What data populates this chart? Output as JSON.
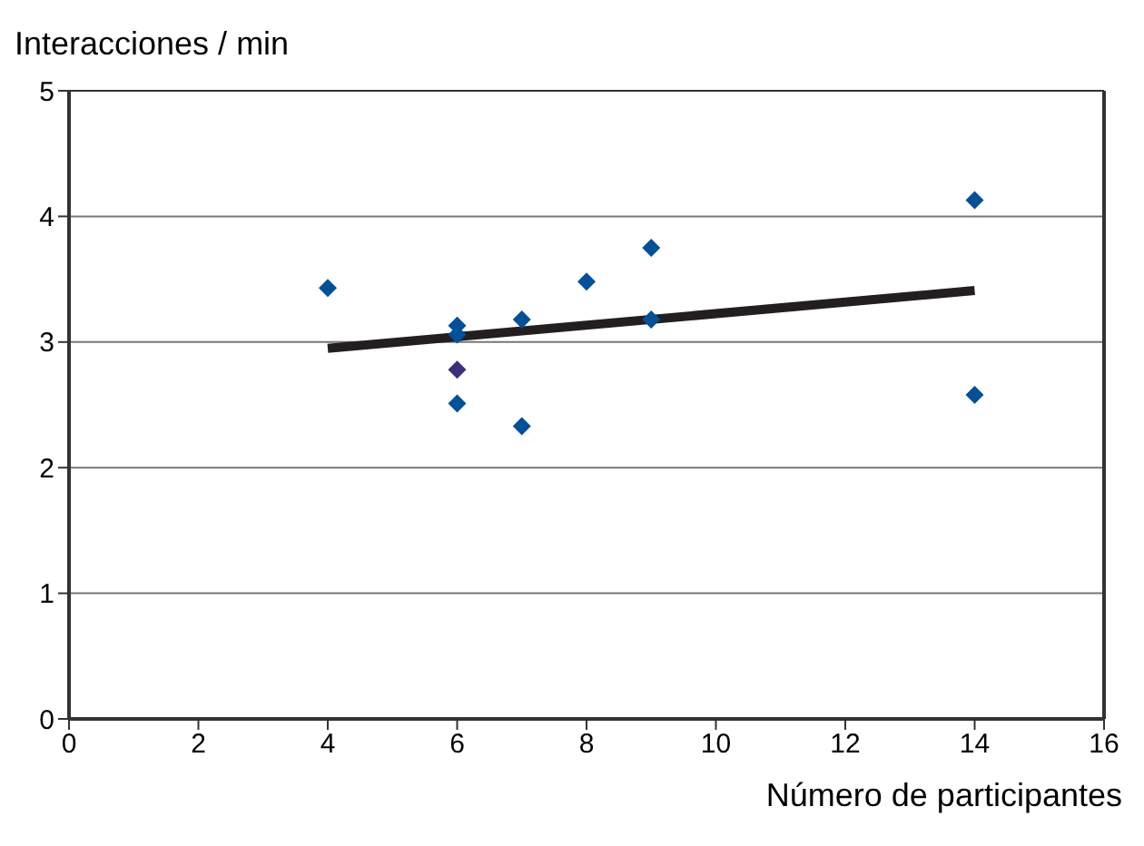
{
  "chart_data": {
    "type": "scatter",
    "xlabel": "Número de participantes",
    "ylabel": "Interacciones / min",
    "xlim": [
      0,
      16
    ],
    "xticks": [
      0,
      2,
      4,
      6,
      8,
      10,
      12,
      14,
      16
    ],
    "ylim": [
      0,
      5
    ],
    "yticks": [
      0,
      1,
      2,
      3,
      4,
      5
    ],
    "grid": "y",
    "legend": false,
    "marker": "diamond",
    "series": [
      {
        "x": [
          4,
          6,
          6,
          6,
          6,
          7,
          7,
          8,
          9,
          9,
          14,
          14
        ],
        "values": [
          3.43,
          3.13,
          3.06,
          2.78,
          2.51,
          3.18,
          2.33,
          3.48,
          3.75,
          3.18,
          4.13,
          2.58
        ],
        "colors": [
          "#00509a",
          "#00509a",
          "#00509a",
          "#3a2f7a",
          "#00509a",
          "#00509a",
          "#00509a",
          "#00509a",
          "#00509a",
          "#00509a",
          "#00509a",
          "#00509a"
        ]
      },
      {
        "type": "line",
        "x": [
          4,
          14
        ],
        "values": [
          2.95,
          3.41
        ],
        "color": "#231f20",
        "marker": "none",
        "line_style": "solid"
      }
    ]
  }
}
